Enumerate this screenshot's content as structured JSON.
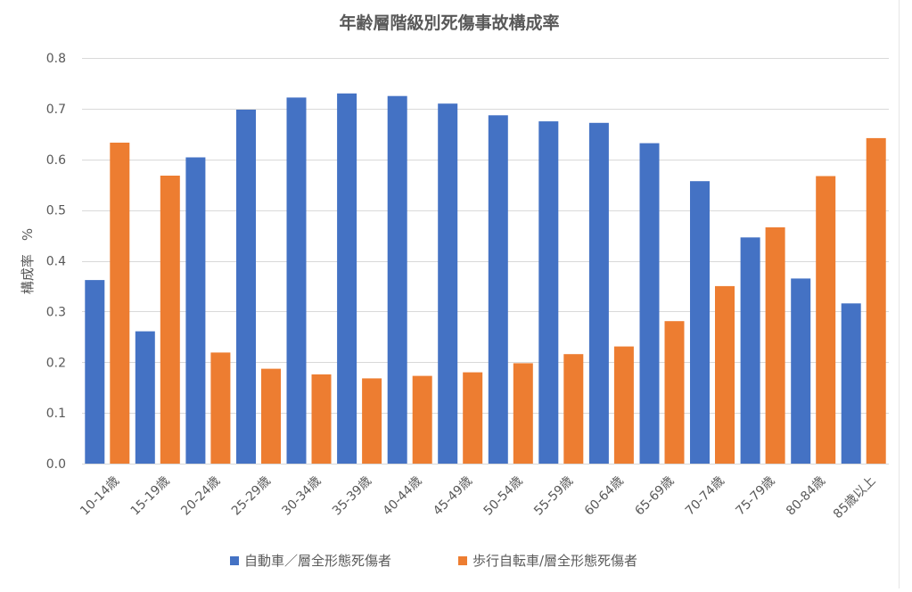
{
  "chart_data": {
    "type": "bar",
    "title": "年齢層階級別死傷事故構成率",
    "xlabel": "",
    "ylabel": "構成率　%",
    "ylim": [
      0,
      0.8
    ],
    "yticks": [
      "0.0",
      "0.1",
      "0.2",
      "0.3",
      "0.4",
      "0.5",
      "0.6",
      "0.7",
      "0.8"
    ],
    "grid": true,
    "legend_position": "bottom",
    "categories": [
      "10-14歳",
      "15-19歳",
      "20-24歳",
      "25-29歳",
      "30-34歳",
      "35-39歳",
      "40-44歳",
      "45-49歳",
      "50-54歳",
      "55-59歳",
      "60-64歳",
      "65-69歳",
      "70-74歳",
      "75-79歳",
      "80-84歳",
      "85歳以上"
    ],
    "series": [
      {
        "name": "自動車／層全形態死傷者",
        "color": "#4472C4",
        "values": [
          0.362,
          0.261,
          0.604,
          0.698,
          0.722,
          0.73,
          0.725,
          0.71,
          0.687,
          0.675,
          0.672,
          0.632,
          0.557,
          0.446,
          0.365,
          0.316
        ]
      },
      {
        "name": "歩行自転車/層全形態死傷者",
        "color": "#ED7D31",
        "values": [
          0.633,
          0.568,
          0.219,
          0.187,
          0.176,
          0.168,
          0.173,
          0.18,
          0.198,
          0.216,
          0.231,
          0.281,
          0.35,
          0.466,
          0.567,
          0.642
        ]
      }
    ]
  }
}
